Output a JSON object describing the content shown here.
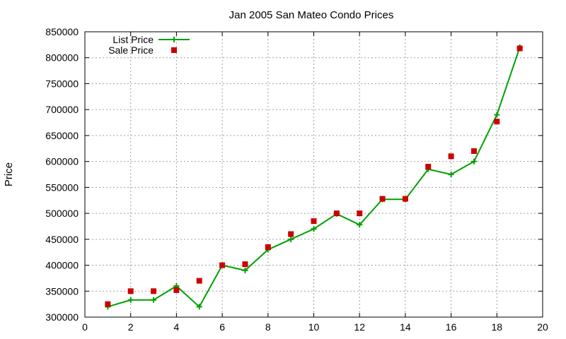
{
  "chart_data": {
    "type": "line",
    "title": "Jan 2005 San Mateo Condo Prices",
    "xlabel": "",
    "ylabel": "Price",
    "xlim": [
      0,
      20
    ],
    "ylim": [
      300000,
      850000
    ],
    "x_ticks": [
      0,
      2,
      4,
      6,
      8,
      10,
      12,
      14,
      16,
      18,
      20
    ],
    "y_ticks": [
      300000,
      350000,
      400000,
      450000,
      500000,
      550000,
      600000,
      650000,
      700000,
      750000,
      800000,
      850000
    ],
    "grid": true,
    "legend_position": "top-left",
    "series": [
      {
        "name": "List Price",
        "style": "line-with-plus-markers",
        "color": "#00a000",
        "points": [
          [
            1,
            320000
          ],
          [
            2,
            333000
          ],
          [
            3,
            333000
          ],
          [
            4,
            360000
          ],
          [
            5,
            320000
          ],
          [
            6,
            400000
          ],
          [
            7,
            390000
          ],
          [
            8,
            430000
          ],
          [
            9,
            450000
          ],
          [
            10,
            470000
          ],
          [
            11,
            499000
          ],
          [
            12,
            478000
          ],
          [
            13,
            527000
          ],
          [
            14,
            527000
          ],
          [
            15,
            585000
          ],
          [
            16,
            575000
          ],
          [
            17,
            600000
          ],
          [
            18,
            690000
          ],
          [
            19,
            820000
          ]
        ]
      },
      {
        "name": "Sale Price",
        "style": "square-markers",
        "color": "#cc0000",
        "points": [
          [
            1,
            325000
          ],
          [
            2,
            350000
          ],
          [
            3,
            350000
          ],
          [
            4,
            352000
          ],
          [
            5,
            370000
          ],
          [
            6,
            400000
          ],
          [
            7,
            402000
          ],
          [
            8,
            435000
          ],
          [
            9,
            460000
          ],
          [
            10,
            485000
          ],
          [
            11,
            500000
          ],
          [
            12,
            500000
          ],
          [
            13,
            528000
          ],
          [
            14,
            528000
          ],
          [
            15,
            590000
          ],
          [
            16,
            610000
          ],
          [
            17,
            620000
          ],
          [
            18,
            677000
          ],
          [
            19,
            818000
          ]
        ]
      }
    ]
  }
}
